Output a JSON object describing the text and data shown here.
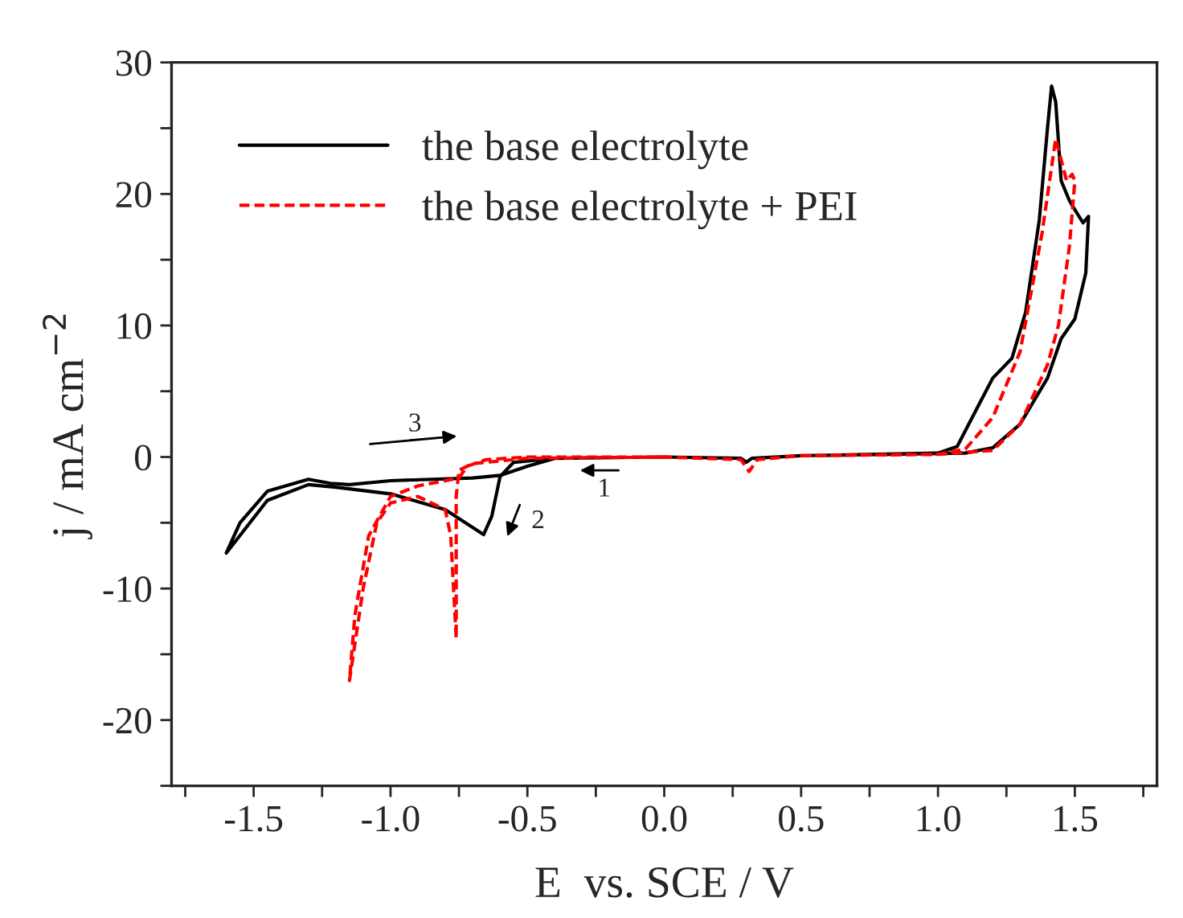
{
  "chart_data": {
    "type": "line",
    "xlabel": "E  vs. SCE / V",
    "ylabel": "j / mA cm$^{−2}$",
    "xlim": [
      -1.8,
      1.8
    ],
    "ylim": [
      -25,
      30
    ],
    "xticks": [
      {
        "value": -1.75,
        "label": null
      },
      -1.5,
      {
        "value": -1.25,
        "label": null
      },
      {
        "value": -1.0,
        "label": "-1.0"
      },
      {
        "value": -0.75,
        "label": null
      },
      -0.5,
      {
        "value": -0.25,
        "label": null
      },
      {
        "value": 0.0,
        "label": "0.0"
      },
      {
        "value": 0.25,
        "label": null
      },
      0.5,
      {
        "value": 0.75,
        "label": null
      },
      {
        "value": 1.0,
        "label": "1.0"
      },
      {
        "value": 1.25,
        "label": null
      },
      1.5,
      {
        "value": 1.75,
        "label": null
      }
    ],
    "yticks": [
      {
        "value": -25,
        "label": null
      },
      -20,
      {
        "value": -15,
        "label": null
      },
      -10,
      {
        "value": -5,
        "label": null
      },
      0,
      {
        "value": 5,
        "label": null
      },
      10,
      {
        "value": 15,
        "label": null
      },
      20,
      {
        "value": 25,
        "label": null
      },
      30
    ],
    "grid": false,
    "legend": "top left",
    "marker": "none",
    "series": [
      {
        "name": "the base electrolyte",
        "color": "#000000",
        "line_style": "solid",
        "x": [
          0.0,
          -0.4,
          -0.55,
          -0.6,
          -0.63,
          -0.66,
          -0.8,
          -1.0,
          -1.2,
          -1.3,
          -1.45,
          -1.6,
          -1.55,
          -1.45,
          -1.3,
          -1.22,
          -1.15,
          -1.0,
          -0.7,
          -0.6,
          -0.5,
          -0.4,
          0.0,
          0.28,
          0.3,
          0.32,
          0.5,
          1.0,
          1.07,
          1.15,
          1.2,
          1.27,
          1.32,
          1.37,
          1.4,
          1.415,
          1.43,
          1.45,
          1.48,
          1.5,
          1.53,
          1.55,
          1.54,
          1.5,
          1.45,
          1.4,
          1.3,
          1.2,
          1.1,
          0.5
        ],
        "values": [
          0.0,
          -0.1,
          -0.4,
          -1.5,
          -4.5,
          -5.9,
          -4.0,
          -2.8,
          -2.3,
          -2.1,
          -3.3,
          -7.3,
          -5.0,
          -2.6,
          -1.7,
          -2.0,
          -2.1,
          -1.8,
          -1.6,
          -1.4,
          -0.7,
          -0.1,
          0.0,
          -0.1,
          -0.4,
          -0.1,
          0.1,
          0.3,
          0.8,
          4.0,
          6.0,
          7.5,
          11.0,
          18.0,
          25.0,
          28.2,
          27.0,
          21.0,
          19.5,
          18.8,
          17.8,
          18.3,
          14.0,
          10.5,
          9.0,
          6.0,
          2.5,
          0.7,
          0.3,
          0.1
        ]
      },
      {
        "name": "the base electrolyte + PEI",
        "color": "#ff0000",
        "line_style": "dashed",
        "x": [
          0.0,
          -0.5,
          -0.7,
          -0.75,
          -0.76,
          -0.76,
          -0.76,
          -0.78,
          -0.8,
          -0.9,
          -1.0,
          -1.05,
          -1.1,
          -1.15,
          -1.13,
          -1.08,
          -1.0,
          -0.9,
          -0.75,
          -0.72,
          -0.65,
          -0.5,
          0.0,
          0.28,
          0.31,
          0.34,
          0.5,
          1.0,
          1.1,
          1.2,
          1.3,
          1.38,
          1.43,
          1.47,
          1.49,
          1.5,
          1.48,
          1.44,
          1.4,
          1.3,
          1.2,
          1.0,
          0.5
        ],
        "values": [
          0.0,
          -0.1,
          -0.5,
          -1.0,
          -3.0,
          -8.0,
          -13.8,
          -6.0,
          -4.0,
          -3.0,
          -3.5,
          -5.0,
          -10.0,
          -17.0,
          -12.0,
          -6.0,
          -3.0,
          -2.2,
          -1.6,
          -0.7,
          -0.2,
          0.0,
          0.0,
          -0.2,
          -1.1,
          -0.2,
          0.1,
          0.2,
          0.6,
          3.0,
          8.0,
          17.0,
          24.2,
          21.0,
          21.5,
          21.0,
          16.0,
          10.0,
          7.0,
          2.5,
          0.5,
          0.2,
          0.1
        ]
      }
    ],
    "annotations": [
      "1",
      "2",
      "3"
    ]
  }
}
